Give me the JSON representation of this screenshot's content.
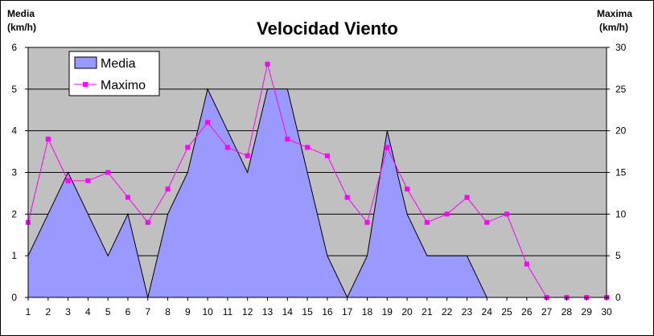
{
  "chart_data": {
    "type": "area",
    "title": "Velocidad Viento",
    "left_axis_title": [
      "Media",
      "(km/h)"
    ],
    "right_axis_title": [
      "Maxima",
      "(km/h)"
    ],
    "x": [
      1,
      2,
      3,
      4,
      5,
      6,
      7,
      8,
      9,
      10,
      11,
      12,
      13,
      14,
      15,
      16,
      17,
      18,
      19,
      20,
      21,
      22,
      23,
      24,
      25,
      26,
      27,
      28,
      29,
      30
    ],
    "ylim_left": [
      0,
      6
    ],
    "ylim_right": [
      0,
      30
    ],
    "yticks_left": [
      "0",
      "1",
      "2",
      "3",
      "4",
      "5",
      "6"
    ],
    "yticks_right": [
      "0",
      "5",
      "10",
      "15",
      "20",
      "25",
      "30"
    ],
    "grid": true,
    "legend_position": "top-left",
    "series": [
      {
        "name": "Media",
        "type": "area",
        "axis": "left",
        "color": "#9999ff",
        "values": [
          1,
          2,
          3,
          2,
          1,
          2,
          0,
          2,
          3,
          5,
          4,
          3,
          5,
          5,
          3,
          1,
          0,
          1,
          4,
          2,
          1,
          1,
          1,
          0,
          null,
          null,
          null,
          null,
          null,
          null
        ]
      },
      {
        "name": "Maximo",
        "type": "line",
        "axis": "right",
        "color": "#ff00ff",
        "values": [
          9,
          19,
          14,
          14,
          15,
          12,
          9,
          13,
          18,
          21,
          18,
          17,
          28,
          19,
          18,
          17,
          12,
          9,
          18,
          13,
          9,
          10,
          12,
          9,
          10,
          4,
          0,
          0,
          0,
          0
        ]
      }
    ],
    "colors": {
      "plot_background": "#c0c0c0",
      "gridline": "#000000"
    }
  }
}
